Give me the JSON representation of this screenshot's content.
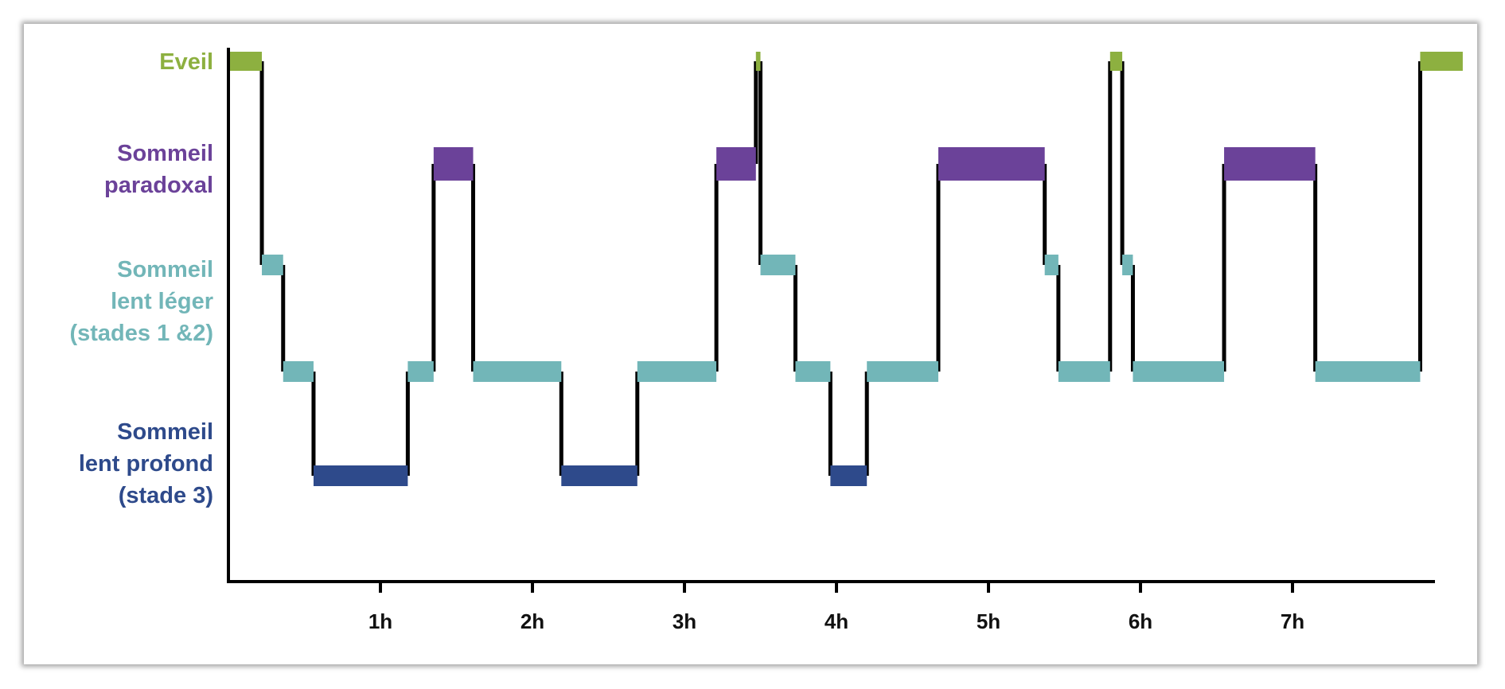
{
  "chart_data": {
    "type": "line",
    "xlabel": "",
    "ylabel": "",
    "x_unit": "hours",
    "xlim": [
      0,
      8.2
    ],
    "x_ticks": [
      {
        "value": 1,
        "label": "1h"
      },
      {
        "value": 2,
        "label": "2h"
      },
      {
        "value": 3,
        "label": "3h"
      },
      {
        "value": 4,
        "label": "4h"
      },
      {
        "value": 5,
        "label": "5h"
      },
      {
        "value": 6,
        "label": "6h"
      },
      {
        "value": 7,
        "label": "7h"
      }
    ],
    "stages": [
      {
        "id": "eveil",
        "lines": [
          "Eveil"
        ],
        "color": "#8db040"
      },
      {
        "id": "paradoxal",
        "lines": [
          "Sommeil",
          "paradoxal"
        ],
        "color": "#6b4299"
      },
      {
        "id": "leger",
        "lines": [
          "Sommeil",
          "lent léger",
          "(stades 1 &2)"
        ],
        "color": "#72b6b8"
      },
      {
        "id": "profond",
        "lines": [
          "Sommeil",
          "lent profond",
          "(stade 3)"
        ],
        "color": "#2e4a8b"
      }
    ],
    "levels": [
      {
        "stage": "eveil",
        "y": 0
      },
      {
        "stage": "paradoxal",
        "y": 1
      },
      {
        "stage": "leger",
        "y": 2
      },
      {
        "stage": "leger",
        "y": 3
      },
      {
        "stage": "profond",
        "y": 4
      }
    ],
    "hypnogram": [
      {
        "level": 0,
        "start": 0.0,
        "end": 0.22
      },
      {
        "level": 2,
        "start": 0.22,
        "end": 0.36
      },
      {
        "level": 3,
        "start": 0.36,
        "end": 0.56
      },
      {
        "level": 4,
        "start": 0.56,
        "end": 1.18
      },
      {
        "level": 3,
        "start": 1.18,
        "end": 1.35
      },
      {
        "level": 1,
        "start": 1.35,
        "end": 1.61
      },
      {
        "level": 3,
        "start": 1.61,
        "end": 2.19
      },
      {
        "level": 4,
        "start": 2.19,
        "end": 2.69
      },
      {
        "level": 3,
        "start": 2.69,
        "end": 3.21
      },
      {
        "level": 1,
        "start": 3.21,
        "end": 3.47
      },
      {
        "level": 0,
        "start": 3.47,
        "end": 3.5
      },
      {
        "level": 2,
        "start": 3.5,
        "end": 3.73
      },
      {
        "level": 3,
        "start": 3.73,
        "end": 3.96
      },
      {
        "level": 4,
        "start": 3.96,
        "end": 4.2
      },
      {
        "level": 3,
        "start": 4.2,
        "end": 4.67
      },
      {
        "level": 1,
        "start": 4.67,
        "end": 5.37
      },
      {
        "level": 2,
        "start": 5.37,
        "end": 5.46
      },
      {
        "level": 3,
        "start": 5.46,
        "end": 5.8
      },
      {
        "level": 0,
        "start": 5.8,
        "end": 5.88
      },
      {
        "level": 2,
        "start": 5.88,
        "end": 5.95
      },
      {
        "level": 3,
        "start": 5.95,
        "end": 6.55
      },
      {
        "level": 1,
        "start": 6.55,
        "end": 7.15
      },
      {
        "level": 3,
        "start": 7.15,
        "end": 7.84
      },
      {
        "level": 0,
        "start": 7.84,
        "end": 8.12
      }
    ]
  }
}
